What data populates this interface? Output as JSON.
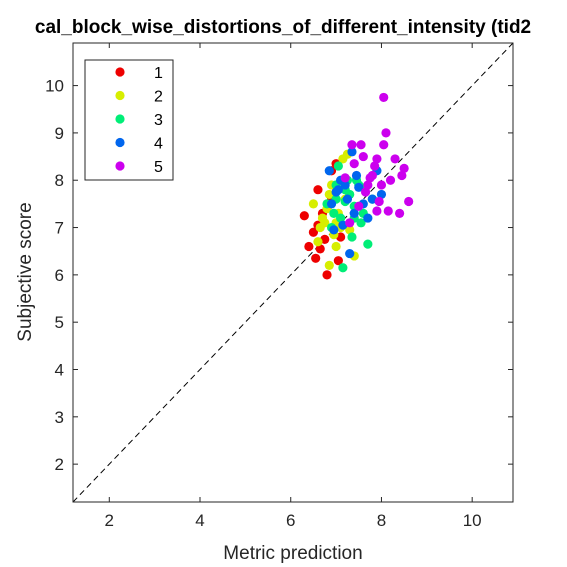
{
  "chart_data": {
    "type": "scatter",
    "title": "cal_block_wise_distortions_of_different_intensity (tid2",
    "xlabel": "Metric prediction",
    "ylabel": "Subjective score",
    "xlim": [
      1.2,
      10.9
    ],
    "ylim": [
      1.2,
      10.9
    ],
    "xticks": [
      2,
      4,
      6,
      8,
      10
    ],
    "yticks": [
      2,
      3,
      4,
      5,
      6,
      7,
      8,
      9,
      10
    ],
    "grid": false,
    "legend_position": "top-left",
    "reference_line": "identity (dashed, black)",
    "series": [
      {
        "name": "1",
        "color": "#ee0000",
        "points": [
          [
            6.3,
            7.25
          ],
          [
            6.4,
            6.6
          ],
          [
            6.5,
            6.9
          ],
          [
            6.55,
            6.35
          ],
          [
            6.6,
            7.8
          ],
          [
            6.7,
            7.3
          ],
          [
            6.8,
            6.0
          ],
          [
            6.9,
            7.6
          ],
          [
            6.95,
            7.0
          ],
          [
            7.0,
            8.35
          ],
          [
            7.05,
            6.3
          ],
          [
            7.1,
            6.8
          ],
          [
            6.6,
            7.05
          ],
          [
            6.75,
            6.75
          ],
          [
            6.9,
            8.2
          ],
          [
            6.65,
            6.55
          ]
        ]
      },
      {
        "name": "2",
        "color": "#d7ee00",
        "points": [
          [
            6.5,
            7.5
          ],
          [
            6.6,
            6.7
          ],
          [
            6.7,
            7.2
          ],
          [
            6.75,
            7.1
          ],
          [
            6.8,
            7.4
          ],
          [
            6.85,
            7.7
          ],
          [
            6.9,
            7.9
          ],
          [
            6.95,
            6.85
          ],
          [
            7.0,
            6.6
          ],
          [
            7.05,
            7.3
          ],
          [
            7.1,
            7.0
          ],
          [
            7.15,
            8.45
          ],
          [
            7.2,
            7.6
          ],
          [
            7.3,
            6.95
          ],
          [
            7.4,
            6.4
          ],
          [
            6.85,
            6.2
          ],
          [
            7.25,
            8.55
          ],
          [
            6.65,
            7.0
          ],
          [
            7.0,
            7.1
          ]
        ]
      },
      {
        "name": "3",
        "color": "#00ee77",
        "points": [
          [
            6.8,
            7.5
          ],
          [
            6.9,
            7.0
          ],
          [
            7.0,
            7.6
          ],
          [
            7.05,
            8.3
          ],
          [
            7.1,
            7.2
          ],
          [
            7.15,
            6.15
          ],
          [
            7.2,
            7.55
          ],
          [
            7.25,
            8.0
          ],
          [
            7.3,
            7.7
          ],
          [
            7.35,
            6.8
          ],
          [
            7.4,
            7.45
          ],
          [
            7.45,
            8.0
          ],
          [
            7.5,
            7.9
          ],
          [
            7.55,
            7.1
          ],
          [
            7.6,
            7.3
          ],
          [
            7.65,
            7.85
          ],
          [
            7.7,
            6.65
          ],
          [
            7.0,
            7.9
          ],
          [
            7.2,
            7.8
          ],
          [
            7.4,
            7.2
          ],
          [
            7.8,
            7.6
          ],
          [
            6.95,
            7.3
          ]
        ]
      },
      {
        "name": "4",
        "color": "#0066ee",
        "points": [
          [
            6.85,
            8.2
          ],
          [
            6.9,
            7.5
          ],
          [
            7.0,
            7.75
          ],
          [
            7.05,
            7.8
          ],
          [
            7.1,
            8.0
          ],
          [
            7.15,
            7.05
          ],
          [
            7.2,
            7.9
          ],
          [
            7.25,
            7.6
          ],
          [
            7.3,
            6.45
          ],
          [
            7.35,
            8.6
          ],
          [
            7.4,
            7.3
          ],
          [
            7.5,
            7.85
          ],
          [
            7.6,
            7.5
          ],
          [
            7.7,
            7.2
          ],
          [
            7.8,
            7.6
          ],
          [
            7.9,
            8.2
          ],
          [
            8.0,
            7.7
          ],
          [
            6.95,
            6.95
          ],
          [
            7.45,
            8.1
          ]
        ]
      },
      {
        "name": "5",
        "color": "#cc00ee",
        "points": [
          [
            7.2,
            8.05
          ],
          [
            7.3,
            7.1
          ],
          [
            7.35,
            8.75
          ],
          [
            7.4,
            8.35
          ],
          [
            7.5,
            7.45
          ],
          [
            7.6,
            8.5
          ],
          [
            7.7,
            7.9
          ],
          [
            7.8,
            8.1
          ],
          [
            7.85,
            8.3
          ],
          [
            7.9,
            8.45
          ],
          [
            7.95,
            7.55
          ],
          [
            8.0,
            7.9
          ],
          [
            8.05,
            8.75
          ],
          [
            8.05,
            9.75
          ],
          [
            8.1,
            9.0
          ],
          [
            8.15,
            7.35
          ],
          [
            8.2,
            8.0
          ],
          [
            8.3,
            8.45
          ],
          [
            8.4,
            7.3
          ],
          [
            8.45,
            8.1
          ],
          [
            8.5,
            8.25
          ],
          [
            8.6,
            7.55
          ],
          [
            7.9,
            7.35
          ],
          [
            7.65,
            7.75
          ],
          [
            7.55,
            8.75
          ],
          [
            7.75,
            8.05
          ]
        ]
      }
    ]
  }
}
